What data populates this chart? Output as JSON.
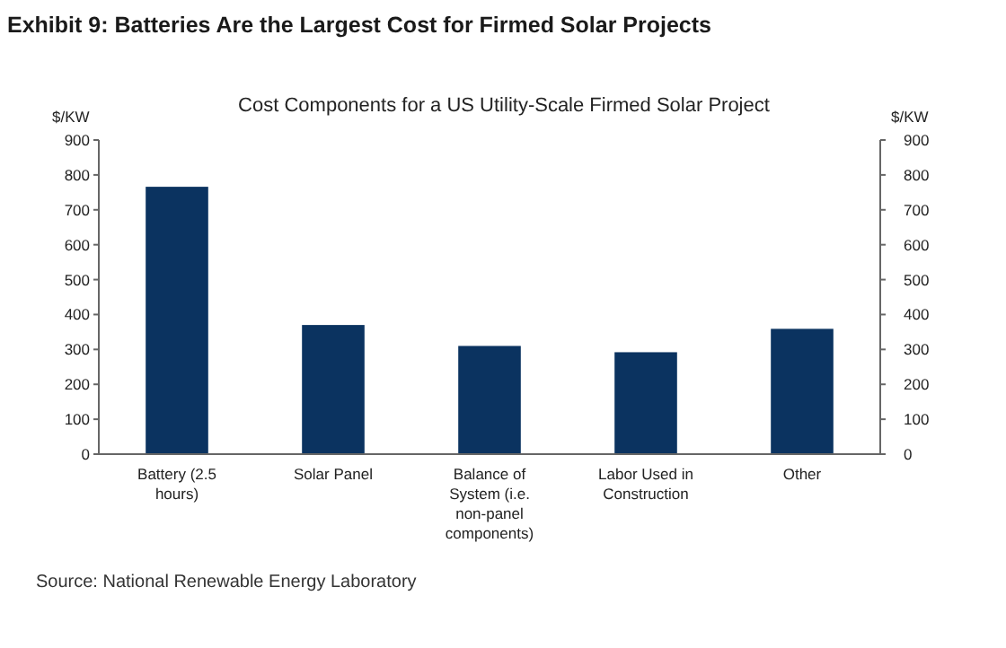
{
  "chart_data": {
    "type": "bar",
    "title": "Exhibit 9: Batteries Are the Largest Cost for Firmed Solar Projects",
    "subtitle": "Cost Components for a US Utility-Scale Firmed Solar Project",
    "ylabel": "$/KW",
    "y2label": "$/KW",
    "categories": [
      "Battery (2.5 hours)",
      "Solar Panel",
      "Balance of System (i.e. non-panel components)",
      "Labor Used in Construction",
      "Other"
    ],
    "values": [
      766,
      370,
      310,
      292,
      359
    ],
    "color": "#0b3360",
    "ylim": [
      0,
      900
    ],
    "yticks": [
      0,
      100,
      200,
      300,
      400,
      500,
      600,
      700,
      800,
      900
    ],
    "y2lim": [
      0,
      900
    ],
    "y2ticks": [
      0,
      100,
      200,
      300,
      400,
      500,
      600,
      700,
      800,
      900
    ],
    "grid": false,
    "annotations": [
      "Source: National Renewable Energy Laboratory"
    ]
  }
}
